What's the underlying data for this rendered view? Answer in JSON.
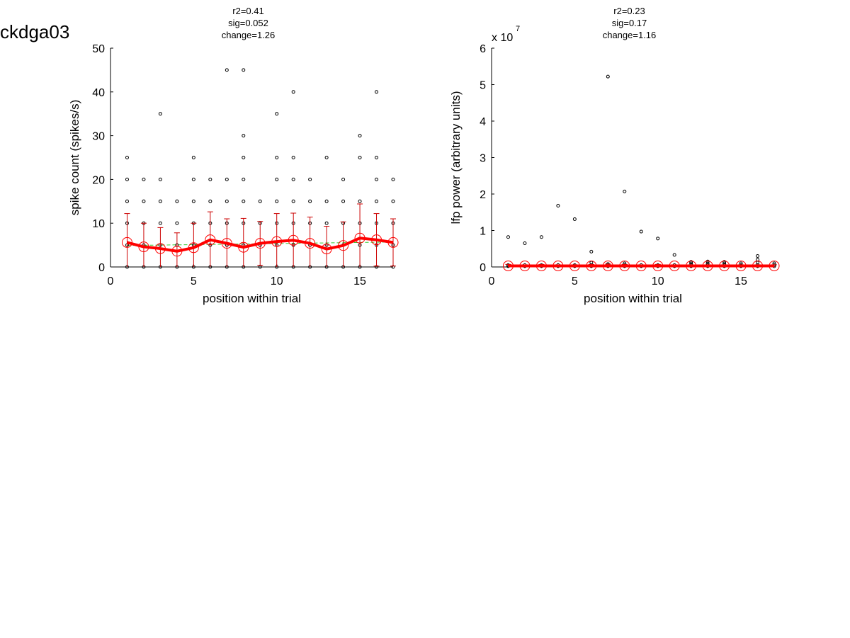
{
  "page": {
    "title": "ckdga03"
  },
  "chart_data": [
    {
      "type": "scatter",
      "annotation_lines": [
        "r2=0.41",
        "sig=0.052",
        "change=1.26"
      ],
      "xlabel": "position within trial",
      "ylabel": "spike count (spikes/s)",
      "xlim": [
        0,
        17
      ],
      "ylim": [
        0,
        50
      ],
      "xticks": [
        0,
        5,
        10,
        15
      ],
      "yticks": [
        0,
        10,
        20,
        30,
        40,
        50
      ],
      "exponent_label": "",
      "grid": false,
      "colors": {
        "points": "#000000",
        "mean": "#ff0000",
        "error": "#cc0000",
        "fit": "#33cc33"
      },
      "points": {
        "1": [
          0,
          5,
          10,
          15,
          20,
          25
        ],
        "2": [
          0,
          5,
          10,
          15,
          20
        ],
        "3": [
          0,
          5,
          10,
          15,
          20,
          35
        ],
        "4": [
          0,
          5,
          10,
          15
        ],
        "5": [
          0,
          5,
          10,
          15,
          20,
          25
        ],
        "6": [
          0,
          5,
          10,
          15,
          20
        ],
        "7": [
          0,
          5,
          10,
          15,
          20,
          45
        ],
        "8": [
          0,
          5,
          10,
          15,
          20,
          25,
          30,
          45
        ],
        "9": [
          0,
          5,
          10,
          15
        ],
        "10": [
          0,
          5,
          10,
          15,
          20,
          25,
          35
        ],
        "11": [
          0,
          5,
          10,
          15,
          20,
          25,
          40
        ],
        "12": [
          0,
          5,
          10,
          15,
          20
        ],
        "13": [
          0,
          5,
          10,
          15,
          25
        ],
        "14": [
          0,
          5,
          10,
          15,
          20
        ],
        "15": [
          0,
          5,
          10,
          15,
          25,
          30
        ],
        "16": [
          0,
          5,
          10,
          15,
          20,
          25,
          40
        ],
        "17": [
          0,
          5,
          10,
          15,
          20
        ]
      },
      "mean": {
        "x": [
          1,
          2,
          3,
          4,
          5,
          6,
          7,
          8,
          9,
          10,
          11,
          12,
          13,
          14,
          15,
          16,
          17
        ],
        "y": [
          5.6,
          4.6,
          4.2,
          3.6,
          4.4,
          6.2,
          5.4,
          4.5,
          5.4,
          5.8,
          6.1,
          5.4,
          4.1,
          4.9,
          6.6,
          6.2,
          5.6
        ]
      },
      "error": [
        6.6,
        5.4,
        4.8,
        4.2,
        5.6,
        6.4,
        5.6,
        6.6,
        5.0,
        6.4,
        6.2,
        6.0,
        5.2,
        5.4,
        7.8,
        6.0,
        5.4
      ],
      "fit": {
        "x": [
          1,
          17
        ],
        "y": [
          4.9,
          5.7
        ]
      }
    },
    {
      "type": "scatter",
      "annotation_lines": [
        "r2=0.23",
        "sig=0.17",
        "change=1.16"
      ],
      "xlabel": "position within trial",
      "ylabel": "lfp power (arbitrary units)",
      "xlim": [
        0,
        17
      ],
      "ylim": [
        0,
        6
      ],
      "xticks": [
        0,
        5,
        10,
        15
      ],
      "yticks": [
        0,
        1,
        2,
        3,
        4,
        5,
        6
      ],
      "exponent_label": "x 10",
      "exponent_power": "7",
      "grid": false,
      "colors": {
        "points": "#000000",
        "mean": "#ff0000",
        "error": "#cc0000",
        "fit": "#33cc33"
      },
      "points": {
        "1": [
          0.02,
          0.05,
          0.82
        ],
        "2": [
          0.02,
          0.05,
          0.65
        ],
        "3": [
          0.02,
          0.05,
          0.82
        ],
        "4": [
          0.02,
          0.05,
          1.68
        ],
        "5": [
          0.02,
          0.05,
          1.31
        ],
        "6": [
          0.02,
          0.05,
          0.12,
          0.42
        ],
        "7": [
          0.02,
          0.05,
          0.08,
          5.22
        ],
        "8": [
          0.02,
          0.05,
          0.1,
          2.07
        ],
        "9": [
          0.02,
          0.05,
          0.97
        ],
        "10": [
          0.02,
          0.05,
          0.78
        ],
        "11": [
          0.02,
          0.05,
          0.33
        ],
        "12": [
          0.02,
          0.05,
          0.1,
          0.14
        ],
        "13": [
          0.02,
          0.05,
          0.1,
          0.15
        ],
        "14": [
          0.02,
          0.05,
          0.1,
          0.14
        ],
        "15": [
          0.02,
          0.05,
          0.1
        ],
        "16": [
          0.02,
          0.05,
          0.12,
          0.2,
          0.3
        ],
        "17": [
          0.02,
          0.05,
          0.1
        ]
      },
      "mean": {
        "x": [
          1,
          2,
          3,
          4,
          5,
          6,
          7,
          8,
          9,
          10,
          11,
          12,
          13,
          14,
          15,
          16,
          17
        ],
        "y": [
          0.03,
          0.03,
          0.03,
          0.03,
          0.03,
          0.03,
          0.03,
          0.03,
          0.03,
          0.03,
          0.03,
          0.03,
          0.03,
          0.03,
          0.03,
          0.03,
          0.03
        ]
      },
      "error": [
        0.04,
        0.03,
        0.04,
        0.03,
        0.03,
        0.04,
        0.05,
        0.04,
        0.03,
        0.04,
        0.03,
        0.03,
        0.03,
        0.03,
        0.03,
        0.03,
        0.03
      ],
      "fit": {
        "x": [
          1,
          17
        ],
        "y": [
          0.02,
          0.04
        ]
      }
    }
  ]
}
